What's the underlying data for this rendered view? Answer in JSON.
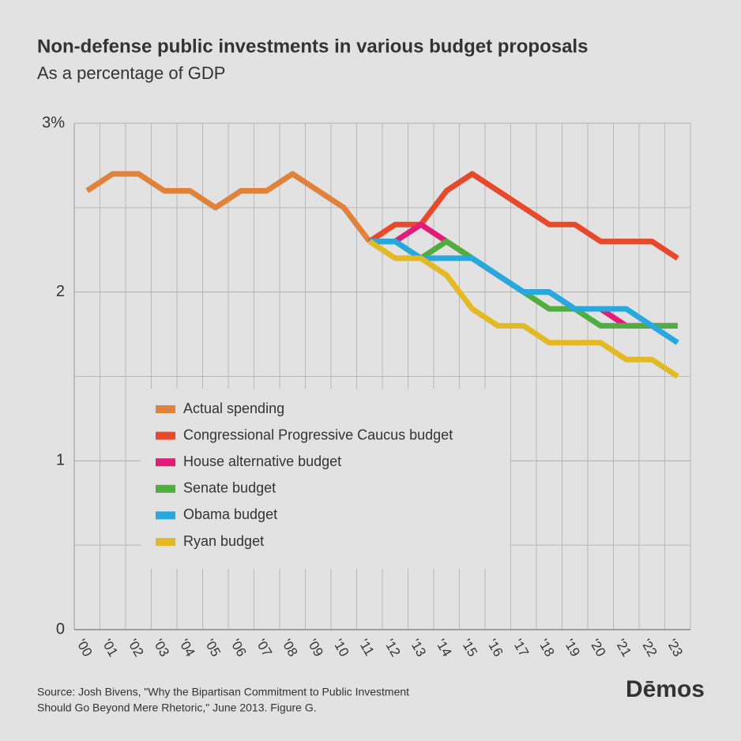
{
  "chart_data": {
    "type": "line",
    "title": "Non-defense public investments in various budget proposals",
    "subtitle": "As a percentage of GDP",
    "categories": [
      "'00",
      "'01",
      "'02",
      "'03",
      "'04",
      "'05",
      "'06",
      "'07",
      "'08",
      "'09",
      "'10",
      "'11",
      "'12",
      "'13",
      "'14",
      "'15",
      "'16",
      "'17",
      "'18",
      "'19",
      "'20",
      "'21",
      "'22",
      "'23"
    ],
    "ylim": [
      0,
      3
    ],
    "yticks": [
      0,
      1,
      2,
      {
        "value": 3,
        "label": "3%"
      }
    ],
    "grid": true,
    "legend": "bottom-left",
    "series": [
      {
        "name": "Actual spending",
        "color": "#e0823a",
        "values": [
          2.6,
          2.7,
          2.7,
          2.6,
          2.6,
          2.5,
          2.6,
          2.6,
          2.7,
          2.6,
          2.5,
          2.3,
          null,
          null,
          null,
          null,
          null,
          null,
          null,
          null,
          null,
          null,
          null,
          null
        ]
      },
      {
        "name": "Congressional Progressive Caucus budget",
        "color": "#e8492a",
        "values": [
          null,
          null,
          null,
          null,
          null,
          null,
          null,
          null,
          null,
          null,
          null,
          2.3,
          2.4,
          2.4,
          2.6,
          2.7,
          2.6,
          2.5,
          2.4,
          2.4,
          2.3,
          2.3,
          2.3,
          2.2
        ]
      },
      {
        "name": "House alternative budget",
        "color": "#e31c79",
        "values": [
          null,
          null,
          null,
          null,
          null,
          null,
          null,
          null,
          null,
          null,
          null,
          2.3,
          2.3,
          2.4,
          2.3,
          2.2,
          2.1,
          2.0,
          2.0,
          1.9,
          1.9,
          1.8,
          1.8,
          1.8
        ]
      },
      {
        "name": "Senate budget",
        "color": "#4fae3e",
        "values": [
          null,
          null,
          null,
          null,
          null,
          null,
          null,
          null,
          null,
          null,
          null,
          2.3,
          2.3,
          2.2,
          2.3,
          2.2,
          2.1,
          2.0,
          1.9,
          1.9,
          1.8,
          1.8,
          1.8,
          1.8
        ]
      },
      {
        "name": "Obama budget",
        "color": "#27a9e0",
        "values": [
          null,
          null,
          null,
          null,
          null,
          null,
          null,
          null,
          null,
          null,
          null,
          2.3,
          2.3,
          2.2,
          2.2,
          2.2,
          2.1,
          2.0,
          2.0,
          1.9,
          1.9,
          1.9,
          1.8,
          1.7
        ]
      },
      {
        "name": "Ryan budget",
        "color": "#e3b924",
        "values": [
          null,
          null,
          null,
          null,
          null,
          null,
          null,
          null,
          null,
          null,
          null,
          2.3,
          2.2,
          2.2,
          2.1,
          1.9,
          1.8,
          1.8,
          1.7,
          1.7,
          1.7,
          1.6,
          1.6,
          1.5
        ]
      }
    ],
    "source": "Source: Josh Bivens, \"Why the Bipartisan Commitment to Public Investment",
    "source_line2": "Should Go Beyond Mere Rhetoric,\" June 2013. Figure G.",
    "logo": "Dēmos"
  }
}
